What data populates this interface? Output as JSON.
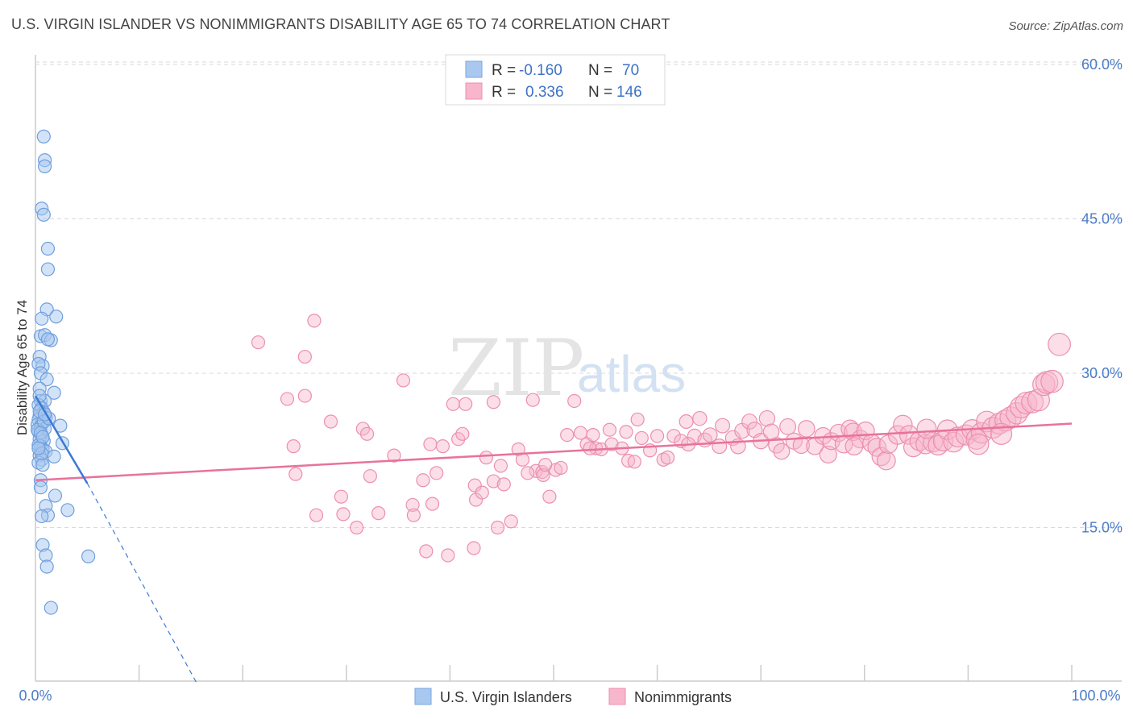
{
  "header": {
    "title": "U.S. VIRGIN ISLANDER VS NONIMMIGRANTS DISABILITY AGE 65 TO 74 CORRELATION CHART",
    "source": "Source: ZipAtlas.com"
  },
  "watermark": {
    "zip": "ZIP",
    "atlas": "atlas"
  },
  "legend": {
    "rows": [
      {
        "r_label": "R =",
        "r_value": "-0.160",
        "n_label": "N =",
        "n_value": "70",
        "color": "#a8c8f0"
      },
      {
        "r_label": "R =",
        "r_value": "0.336",
        "n_label": "N =",
        "n_value": "146",
        "color": "#f7b6cb"
      }
    ]
  },
  "bottom_legend": {
    "series1": "U.S. Virgin Islanders",
    "series2": "Nonimmigrants"
  },
  "chart_data": {
    "type": "scatter",
    "title": "U.S. VIRGIN ISLANDER VS NONIMMIGRANTS DISABILITY AGE 65 TO 74 CORRELATION CHART",
    "ylabel": "Disability Age 65 to 74",
    "xlabel": "",
    "xlim": [
      0,
      100
    ],
    "ylim": [
      0,
      66
    ],
    "x_tick_labels": [
      "0.0%",
      "100.0%"
    ],
    "y_ticks": [
      15,
      30,
      45,
      60
    ],
    "y_tick_labels": [
      "15.0%",
      "30.0%",
      "45.0%",
      "60.0%"
    ],
    "grid": true,
    "colors": {
      "series1": "#a8c8f0",
      "series1_line": "#3b78d4",
      "series2": "#f7b6cb",
      "series2_line": "#e8739a"
    },
    "series": [
      {
        "name": "U.S. Virgin Islanders",
        "trend": {
          "x0": 0,
          "y0": 27.8,
          "x1": 5.0,
          "y1": 19.3,
          "dash_to_x": 15.5,
          "dash_to_y": 0
        },
        "points": [
          [
            0.8,
            53
          ],
          [
            0.9,
            50.7
          ],
          [
            0.9,
            50.1
          ],
          [
            0.6,
            46
          ],
          [
            0.8,
            45.4
          ],
          [
            1.2,
            42.1
          ],
          [
            1.2,
            40.1
          ],
          [
            1.1,
            36.2
          ],
          [
            2.0,
            35.5
          ],
          [
            0.6,
            35.3
          ],
          [
            0.5,
            33.6
          ],
          [
            0.9,
            33.7
          ],
          [
            1.5,
            33.2
          ],
          [
            1.2,
            33.3
          ],
          [
            0.4,
            31.6
          ],
          [
            0.7,
            30.7
          ],
          [
            0.3,
            30.9
          ],
          [
            0.5,
            30
          ],
          [
            1.1,
            29.4
          ],
          [
            0.4,
            28.5
          ],
          [
            1.8,
            28.1
          ],
          [
            0.5,
            27.3
          ],
          [
            0.9,
            27.3
          ],
          [
            0.3,
            26.9
          ],
          [
            0.6,
            26.6
          ],
          [
            0.8,
            26.2
          ],
          [
            0.4,
            25.9
          ],
          [
            1.0,
            25.7
          ],
          [
            0.3,
            25.5
          ],
          [
            0.6,
            25.1
          ],
          [
            0.2,
            25.0
          ],
          [
            0.5,
            24.8
          ],
          [
            0.9,
            24.6
          ],
          [
            0.3,
            24.3
          ],
          [
            2.4,
            24.9
          ],
          [
            0.6,
            24.0
          ],
          [
            0.4,
            23.6
          ],
          [
            0.8,
            23.4
          ],
          [
            2.6,
            23.2
          ],
          [
            0.5,
            22.9
          ],
          [
            0.7,
            22.6
          ],
          [
            1.0,
            22.4
          ],
          [
            0.4,
            22.0
          ],
          [
            1.8,
            21.9
          ],
          [
            0.6,
            21.6
          ],
          [
            0.3,
            21.3
          ],
          [
            0.7,
            21.1
          ],
          [
            0.5,
            19.6
          ],
          [
            0.5,
            18.9
          ],
          [
            1.9,
            18.1
          ],
          [
            1.0,
            17.1
          ],
          [
            3.1,
            16.7
          ],
          [
            1.2,
            16.2
          ],
          [
            0.6,
            16.1
          ],
          [
            0.7,
            13.3
          ],
          [
            1.0,
            12.3
          ],
          [
            5.1,
            12.2
          ],
          [
            1.1,
            11.2
          ],
          [
            1.5,
            7.2
          ],
          [
            0.4,
            26.3
          ],
          [
            0.2,
            24.5
          ],
          [
            0.8,
            25.3
          ],
          [
            0.3,
            23.0
          ],
          [
            0.6,
            22.2
          ],
          [
            1.3,
            25.6
          ],
          [
            0.4,
            27.8
          ],
          [
            0.9,
            26.0
          ],
          [
            0.5,
            24.2
          ],
          [
            0.7,
            23.8
          ],
          [
            0.3,
            22.7
          ]
        ]
      },
      {
        "name": "Nonimmigrants",
        "trend": {
          "x0": 0,
          "y0": 19.6,
          "x1": 100,
          "y1": 25.1
        },
        "points": [
          [
            21.5,
            33.0
          ],
          [
            26.9,
            35.1
          ],
          [
            26.0,
            31.6
          ],
          [
            24.3,
            27.5
          ],
          [
            26.0,
            27.8
          ],
          [
            28.5,
            25.3
          ],
          [
            31.6,
            24.6
          ],
          [
            32.0,
            24.1
          ],
          [
            24.9,
            22.9
          ],
          [
            25.1,
            20.2
          ],
          [
            29.5,
            18.0
          ],
          [
            27.1,
            16.2
          ],
          [
            29.7,
            16.3
          ],
          [
            31.0,
            15.0
          ],
          [
            32.3,
            20.0
          ],
          [
            33.1,
            16.4
          ],
          [
            34.6,
            22.0
          ],
          [
            35.5,
            29.3
          ],
          [
            36.4,
            17.2
          ],
          [
            36.5,
            16.2
          ],
          [
            37.4,
            19.6
          ],
          [
            37.7,
            12.7
          ],
          [
            38.1,
            23.1
          ],
          [
            38.3,
            17.3
          ],
          [
            38.7,
            20.3
          ],
          [
            39.3,
            22.9
          ],
          [
            39.8,
            12.3
          ],
          [
            40.3,
            27.0
          ],
          [
            40.8,
            23.6
          ],
          [
            41.2,
            24.1
          ],
          [
            41.5,
            27.0
          ],
          [
            42.5,
            17.7
          ],
          [
            42.4,
            19.1
          ],
          [
            42.3,
            13.0
          ],
          [
            43.1,
            18.4
          ],
          [
            43.5,
            21.8
          ],
          [
            44.2,
            19.5
          ],
          [
            44.2,
            27.2
          ],
          [
            44.6,
            15.0
          ],
          [
            44.9,
            21.0
          ],
          [
            45.2,
            19.2
          ],
          [
            45.9,
            15.6
          ],
          [
            46.6,
            22.6
          ],
          [
            47.0,
            21.6
          ],
          [
            48.0,
            27.4
          ],
          [
            48.3,
            20.5
          ],
          [
            48.9,
            20.4
          ],
          [
            49.0,
            20.1
          ],
          [
            49.6,
            18.0
          ],
          [
            50.2,
            20.6
          ],
          [
            49.2,
            21.1
          ],
          [
            50.7,
            20.8
          ],
          [
            51.3,
            24.0
          ],
          [
            52.0,
            27.3
          ],
          [
            52.6,
            24.2
          ],
          [
            53.2,
            23.1
          ],
          [
            53.8,
            24.0
          ],
          [
            54.1,
            22.7
          ],
          [
            54.6,
            22.6
          ],
          [
            55.4,
            24.5
          ],
          [
            55.6,
            23.1
          ],
          [
            56.6,
            22.7
          ],
          [
            57.2,
            21.5
          ],
          [
            57.8,
            21.4
          ],
          [
            58.1,
            25.5
          ],
          [
            58.5,
            23.7
          ],
          [
            59.3,
            22.5
          ],
          [
            60.0,
            23.9
          ],
          [
            60.6,
            21.6
          ],
          [
            61.0,
            21.8
          ],
          [
            61.6,
            23.9
          ],
          [
            62.3,
            23.4
          ],
          [
            62.8,
            25.3
          ],
          [
            63.6,
            23.9
          ],
          [
            64.1,
            25.6
          ],
          [
            64.6,
            23.5
          ],
          [
            65.1,
            24.0
          ],
          [
            66.0,
            22.9
          ],
          [
            66.3,
            24.9
          ],
          [
            67.3,
            23.7
          ],
          [
            67.8,
            22.9
          ],
          [
            68.2,
            24.4
          ],
          [
            68.9,
            25.3
          ],
          [
            69.4,
            24.5
          ],
          [
            70.0,
            23.4
          ],
          [
            70.6,
            25.6
          ],
          [
            71.5,
            23.0
          ],
          [
            72.0,
            22.4
          ],
          [
            72.6,
            24.8
          ],
          [
            73.2,
            23.4
          ],
          [
            73.9,
            23.0
          ],
          [
            74.4,
            24.6
          ],
          [
            75.2,
            22.9
          ],
          [
            76.0,
            23.9
          ],
          [
            76.5,
            22.1
          ],
          [
            76.8,
            23.4
          ],
          [
            77.5,
            24.2
          ],
          [
            78.0,
            23.1
          ],
          [
            78.6,
            24.6
          ],
          [
            78.9,
            24.3
          ],
          [
            79.6,
            23.6
          ],
          [
            80.1,
            24.4
          ],
          [
            80.7,
            23.2
          ],
          [
            81.2,
            22.8
          ],
          [
            81.6,
            21.9
          ],
          [
            82.1,
            21.5
          ],
          [
            82.3,
            23.1
          ],
          [
            83.2,
            24.0
          ],
          [
            83.7,
            25.0
          ],
          [
            84.3,
            24.0
          ],
          [
            84.7,
            22.8
          ],
          [
            85.3,
            23.4
          ],
          [
            85.9,
            23.1
          ],
          [
            86.6,
            23.3
          ],
          [
            87.1,
            23.0
          ],
          [
            87.6,
            23.4
          ],
          [
            88.0,
            24.5
          ],
          [
            88.6,
            23.3
          ],
          [
            89.0,
            23.8
          ],
          [
            89.8,
            24.0
          ],
          [
            90.4,
            24.5
          ],
          [
            90.8,
            23.6
          ],
          [
            91.3,
            24.2
          ],
          [
            91.8,
            25.3
          ],
          [
            92.4,
            24.7
          ],
          [
            93.0,
            25.1
          ],
          [
            93.6,
            25.4
          ],
          [
            94.1,
            25.7
          ],
          [
            94.7,
            26.1
          ],
          [
            95.1,
            26.7
          ],
          [
            95.6,
            27.1
          ],
          [
            96.2,
            27.2
          ],
          [
            96.8,
            27.4
          ],
          [
            97.3,
            28.9
          ],
          [
            97.6,
            29.1
          ],
          [
            98.1,
            29.2
          ],
          [
            98.8,
            32.8
          ],
          [
            93.2,
            24.1
          ],
          [
            91.0,
            23.1
          ],
          [
            86.0,
            24.6
          ],
          [
            79.0,
            22.9
          ],
          [
            71.0,
            24.3
          ],
          [
            63.0,
            23.1
          ],
          [
            57.0,
            24.3
          ],
          [
            53.5,
            22.7
          ],
          [
            47.5,
            20.3
          ]
        ]
      }
    ]
  }
}
